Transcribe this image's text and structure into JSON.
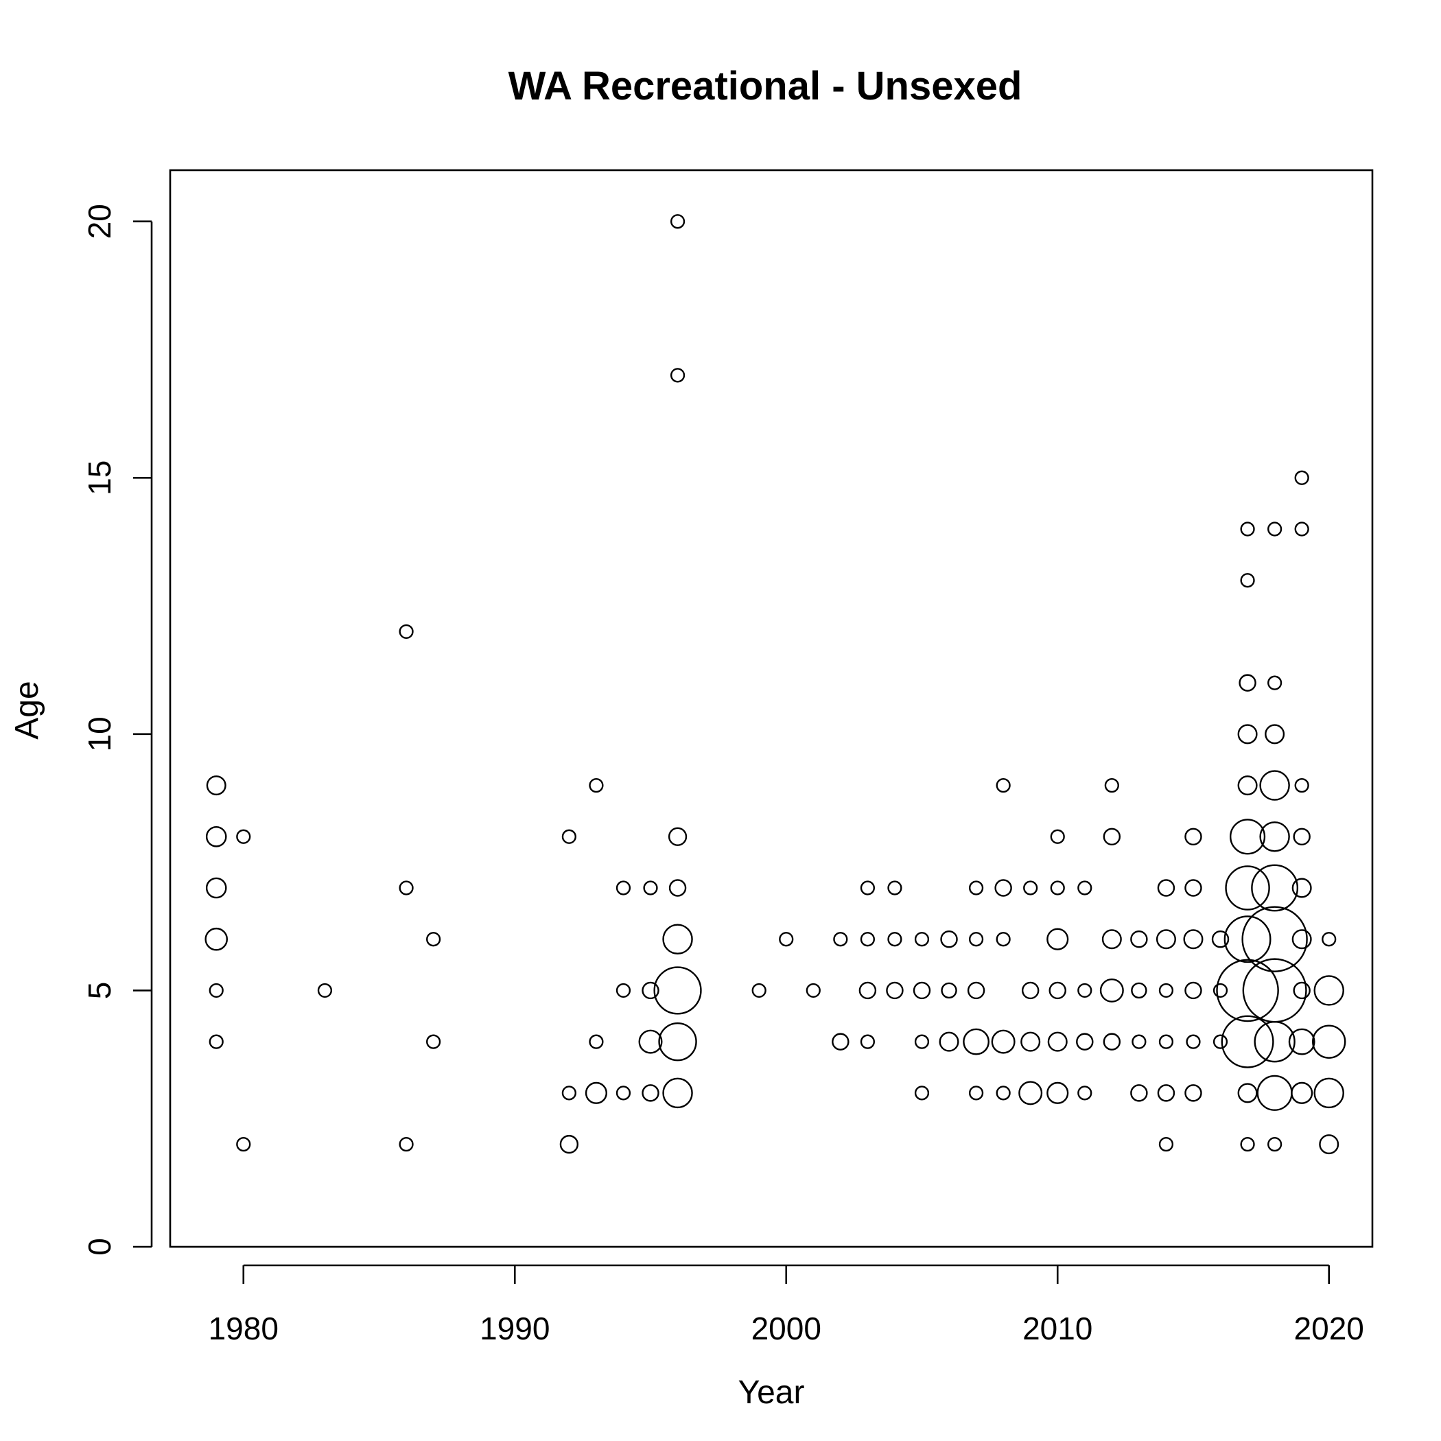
{
  "chart_data": {
    "type": "scatter",
    "subtype": "bubble",
    "title": "WA Recreational - Unsexed",
    "xlabel": "Year",
    "ylabel": "Age",
    "xlim": [
      1977.3,
      2021.6
    ],
    "ylim": [
      0,
      21
    ],
    "xticks": [
      "1980",
      "1990",
      "2000",
      "2010",
      "2020"
    ],
    "yticks": [
      "0",
      "5",
      "10",
      "15",
      "20"
    ],
    "grid": false,
    "legend": "none",
    "marker": "open-circle",
    "color": "#000000",
    "size_meaning": "relative proportion (estimated)",
    "points": [
      [
        1979,
        9,
        0.08
      ],
      [
        1979,
        8,
        0.09
      ],
      [
        1979,
        7,
        0.09
      ],
      [
        1979,
        6,
        0.11
      ],
      [
        1979,
        5,
        0.04
      ],
      [
        1979,
        4,
        0.04
      ],
      [
        1980,
        8,
        0.04
      ],
      [
        1980,
        2,
        0.04
      ],
      [
        1983,
        5,
        0.04
      ],
      [
        1986,
        12,
        0.04
      ],
      [
        1986,
        7,
        0.04
      ],
      [
        1986,
        2,
        0.04
      ],
      [
        1987,
        6,
        0.04
      ],
      [
        1987,
        4,
        0.04
      ],
      [
        1992,
        8,
        0.04
      ],
      [
        1992,
        3,
        0.04
      ],
      [
        1992,
        2,
        0.07
      ],
      [
        1993,
        9,
        0.04
      ],
      [
        1993,
        4,
        0.04
      ],
      [
        1993,
        3,
        0.1
      ],
      [
        1994,
        7,
        0.04
      ],
      [
        1994,
        5,
        0.04
      ],
      [
        1994,
        3,
        0.04
      ],
      [
        1995,
        7,
        0.04
      ],
      [
        1995,
        5,
        0.06
      ],
      [
        1995,
        4,
        0.12
      ],
      [
        1995,
        3,
        0.06
      ],
      [
        1996,
        20,
        0.04
      ],
      [
        1996,
        17,
        0.04
      ],
      [
        1996,
        8,
        0.07
      ],
      [
        1996,
        7,
        0.06
      ],
      [
        1996,
        6,
        0.2
      ],
      [
        1996,
        5,
        0.52
      ],
      [
        1996,
        4,
        0.33
      ],
      [
        1996,
        3,
        0.2
      ],
      [
        1999,
        5,
        0.04
      ],
      [
        2000,
        6,
        0.04
      ],
      [
        2001,
        5,
        0.04
      ],
      [
        2002,
        6,
        0.04
      ],
      [
        2002,
        4,
        0.06
      ],
      [
        2003,
        7,
        0.04
      ],
      [
        2003,
        6,
        0.04
      ],
      [
        2003,
        5,
        0.06
      ],
      [
        2003,
        4,
        0.04
      ],
      [
        2004,
        7,
        0.04
      ],
      [
        2004,
        6,
        0.04
      ],
      [
        2004,
        5,
        0.06
      ],
      [
        2005,
        6,
        0.04
      ],
      [
        2005,
        5,
        0.06
      ],
      [
        2005,
        4,
        0.04
      ],
      [
        2005,
        3,
        0.04
      ],
      [
        2006,
        6,
        0.06
      ],
      [
        2006,
        5,
        0.05
      ],
      [
        2006,
        4,
        0.08
      ],
      [
        2007,
        7,
        0.04
      ],
      [
        2007,
        6,
        0.04
      ],
      [
        2007,
        5,
        0.06
      ],
      [
        2007,
        4,
        0.15
      ],
      [
        2007,
        3,
        0.04
      ],
      [
        2008,
        9,
        0.04
      ],
      [
        2008,
        7,
        0.06
      ],
      [
        2008,
        6,
        0.04
      ],
      [
        2008,
        4,
        0.12
      ],
      [
        2008,
        3,
        0.04
      ],
      [
        2009,
        7,
        0.04
      ],
      [
        2009,
        5,
        0.06
      ],
      [
        2009,
        4,
        0.08
      ],
      [
        2009,
        3,
        0.12
      ],
      [
        2010,
        8,
        0.04
      ],
      [
        2010,
        7,
        0.04
      ],
      [
        2010,
        6,
        0.1
      ],
      [
        2010,
        5,
        0.06
      ],
      [
        2010,
        4,
        0.08
      ],
      [
        2010,
        3,
        0.1
      ],
      [
        2011,
        7,
        0.04
      ],
      [
        2011,
        5,
        0.04
      ],
      [
        2011,
        4,
        0.06
      ],
      [
        2011,
        3,
        0.04
      ],
      [
        2012,
        9,
        0.04
      ],
      [
        2012,
        8,
        0.06
      ],
      [
        2012,
        6,
        0.08
      ],
      [
        2012,
        5,
        0.12
      ],
      [
        2012,
        4,
        0.06
      ],
      [
        2013,
        6,
        0.06
      ],
      [
        2013,
        5,
        0.05
      ],
      [
        2013,
        4,
        0.04
      ],
      [
        2013,
        3,
        0.06
      ],
      [
        2014,
        7,
        0.06
      ],
      [
        2014,
        6,
        0.08
      ],
      [
        2014,
        5,
        0.04
      ],
      [
        2014,
        4,
        0.04
      ],
      [
        2014,
        3,
        0.06
      ],
      [
        2014,
        2,
        0.04
      ],
      [
        2015,
        8,
        0.06
      ],
      [
        2015,
        7,
        0.06
      ],
      [
        2015,
        6,
        0.08
      ],
      [
        2015,
        5,
        0.06
      ],
      [
        2015,
        4,
        0.04
      ],
      [
        2015,
        3,
        0.06
      ],
      [
        2016,
        6,
        0.06
      ],
      [
        2016,
        5,
        0.04
      ],
      [
        2016,
        4,
        0.04
      ],
      [
        2017,
        14,
        0.04
      ],
      [
        2017,
        13,
        0.04
      ],
      [
        2017,
        11,
        0.06
      ],
      [
        2017,
        10,
        0.08
      ],
      [
        2017,
        9,
        0.08
      ],
      [
        2017,
        8,
        0.28
      ],
      [
        2017,
        7,
        0.45
      ],
      [
        2017,
        6,
        0.5
      ],
      [
        2017,
        5,
        0.9
      ],
      [
        2017,
        4,
        0.63
      ],
      [
        2017,
        3,
        0.08
      ],
      [
        2017,
        2,
        0.04
      ],
      [
        2018,
        14,
        0.04
      ],
      [
        2018,
        11,
        0.04
      ],
      [
        2018,
        10,
        0.08
      ],
      [
        2018,
        9,
        0.2
      ],
      [
        2018,
        8,
        0.2
      ],
      [
        2018,
        7,
        0.5
      ],
      [
        2018,
        6,
        1.0
      ],
      [
        2018,
        5,
        0.95
      ],
      [
        2018,
        4,
        0.38
      ],
      [
        2018,
        3,
        0.28
      ],
      [
        2018,
        2,
        0.04
      ],
      [
        2019,
        15,
        0.04
      ],
      [
        2019,
        14,
        0.04
      ],
      [
        2019,
        9,
        0.04
      ],
      [
        2019,
        8,
        0.06
      ],
      [
        2019,
        7,
        0.08
      ],
      [
        2019,
        6,
        0.08
      ],
      [
        2019,
        5,
        0.06
      ],
      [
        2019,
        4,
        0.15
      ],
      [
        2019,
        3,
        0.1
      ],
      [
        2020,
        6,
        0.04
      ],
      [
        2020,
        5,
        0.2
      ],
      [
        2020,
        4,
        0.25
      ],
      [
        2020,
        3,
        0.2
      ],
      [
        2020,
        2,
        0.08
      ]
    ]
  }
}
